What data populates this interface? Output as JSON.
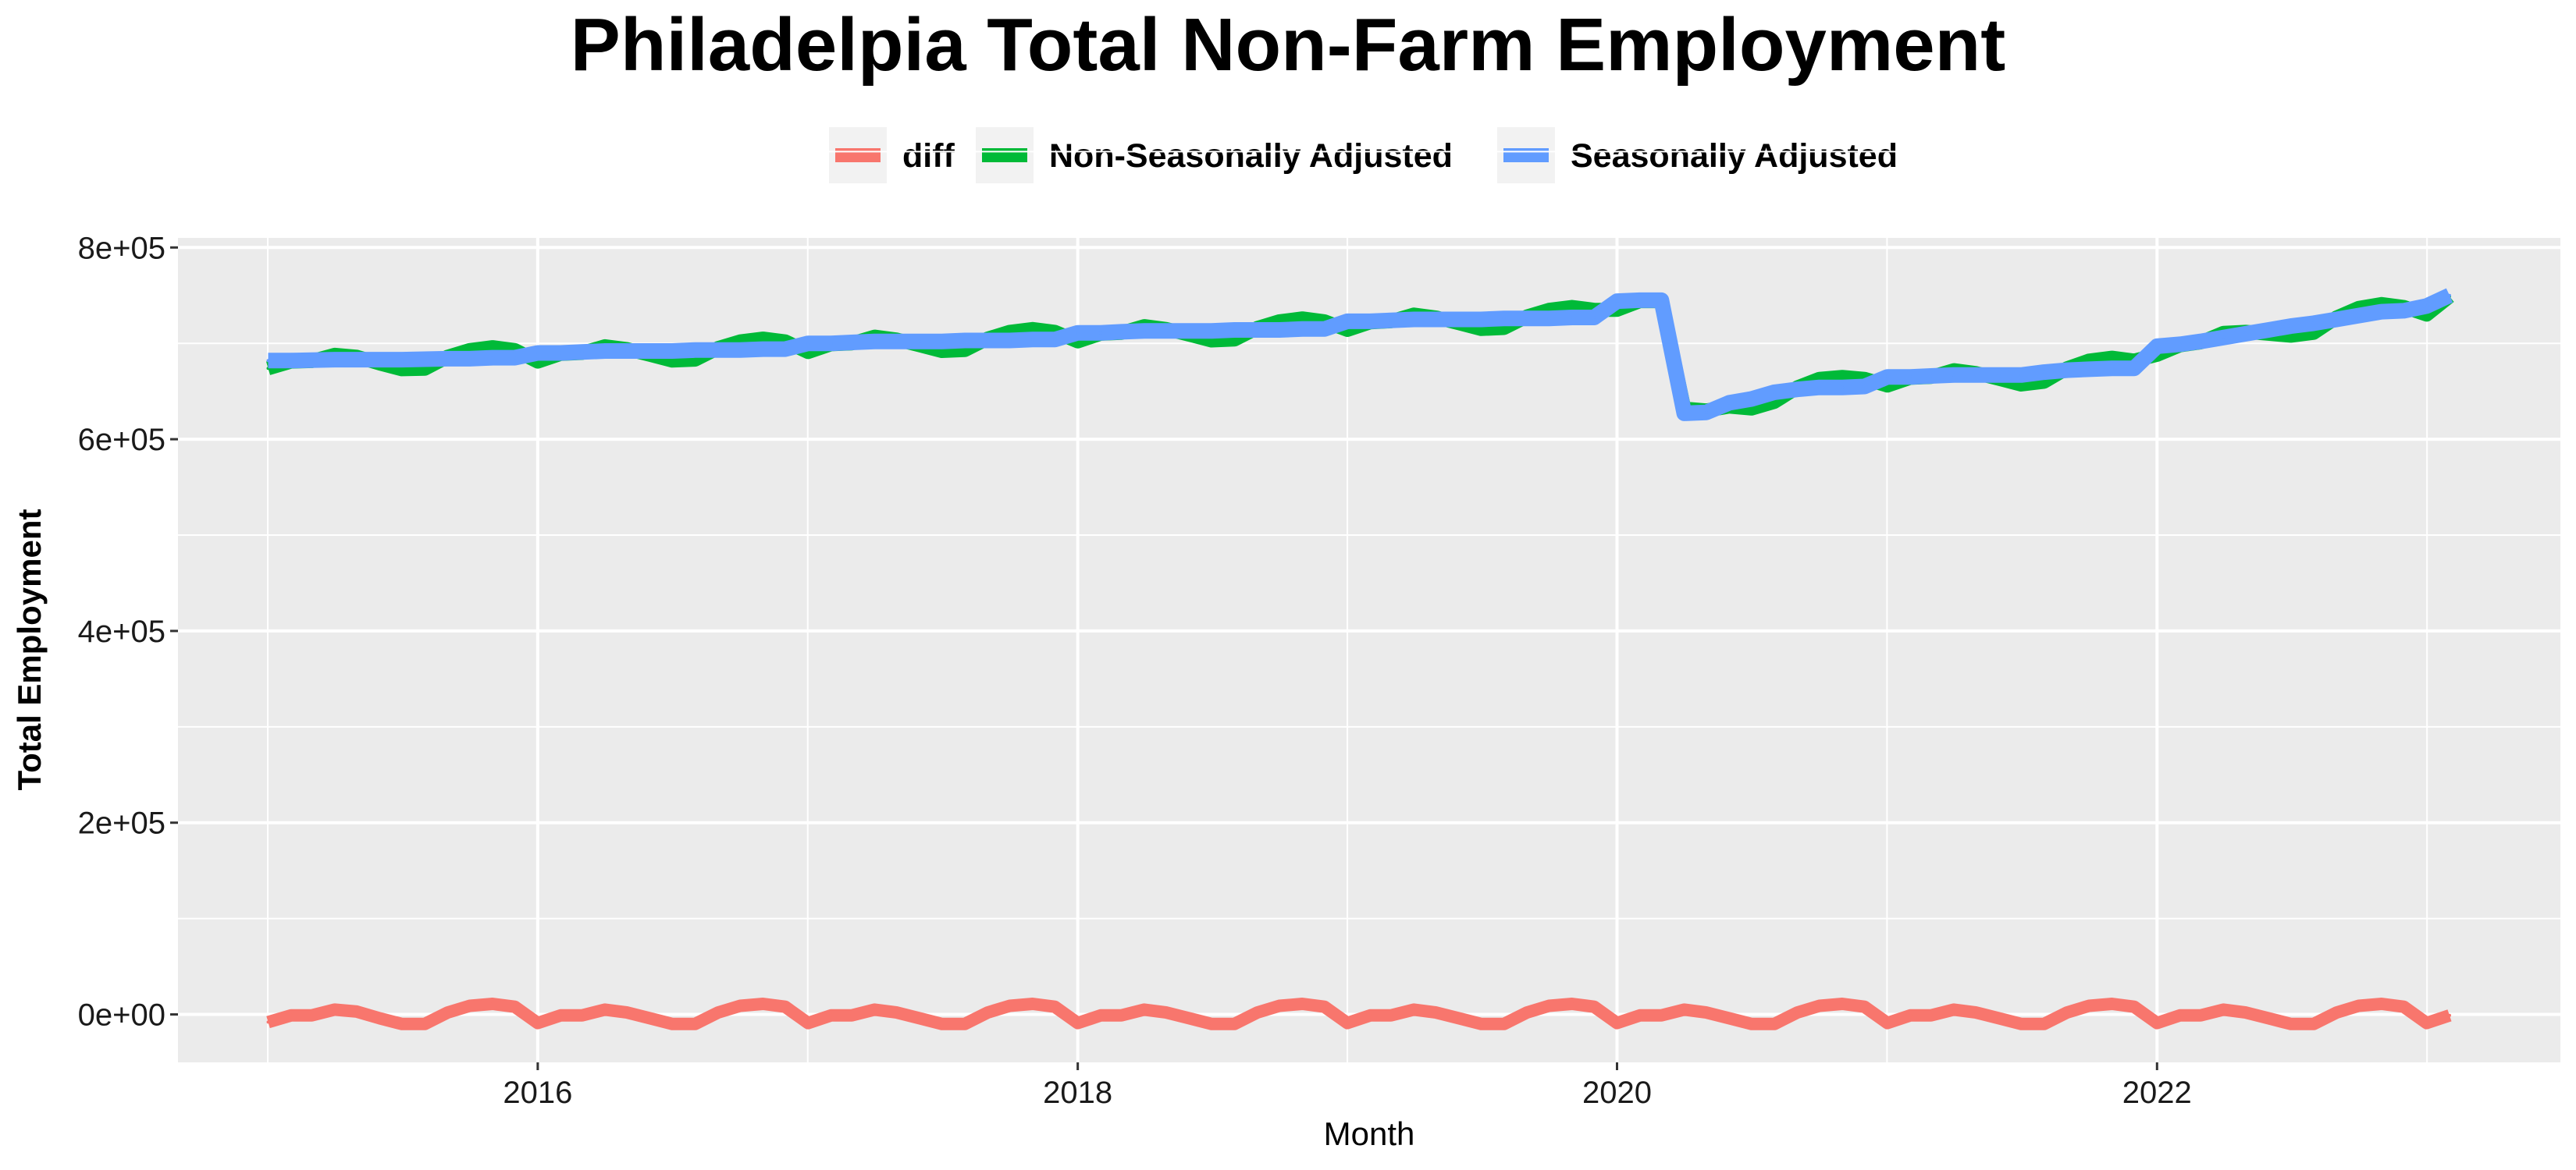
{
  "chart_data": {
    "type": "line",
    "title": "Philadelpia Total Non-Farm Employment",
    "xlabel": "Month",
    "ylabel": "Total Employment",
    "xlim": [
      "2014-09-01",
      "2023-07-01"
    ],
    "ylim": [
      -50000,
      810000
    ],
    "y_ticks": [
      0,
      200000,
      400000,
      600000,
      800000
    ],
    "y_tick_labels": [
      "0e+00",
      "2e+05",
      "4e+05",
      "6e+05",
      "8e+05"
    ],
    "x_ticks": [
      "2016-01-01",
      "2018-01-01",
      "2020-01-01",
      "2022-01-01"
    ],
    "x_tick_labels": [
      "2016",
      "2018",
      "2020",
      "2022"
    ],
    "grid": true,
    "legend_position": "top",
    "series": [
      {
        "name": "diff",
        "color": "#F8766D",
        "x": [
          "2015-01",
          "2015-02",
          "2015-03",
          "2015-04",
          "2015-05",
          "2015-06",
          "2015-07",
          "2015-08",
          "2015-09",
          "2015-10",
          "2015-11",
          "2015-12",
          "2016-01",
          "2016-02",
          "2016-03",
          "2016-04",
          "2016-05",
          "2016-06",
          "2016-07",
          "2016-08",
          "2016-09",
          "2016-10",
          "2016-11",
          "2016-12",
          "2017-01",
          "2017-02",
          "2017-03",
          "2017-04",
          "2017-05",
          "2017-06",
          "2017-07",
          "2017-08",
          "2017-09",
          "2017-10",
          "2017-11",
          "2017-12",
          "2018-01",
          "2018-02",
          "2018-03",
          "2018-04",
          "2018-05",
          "2018-06",
          "2018-07",
          "2018-08",
          "2018-09",
          "2018-10",
          "2018-11",
          "2018-12",
          "2019-01",
          "2019-02",
          "2019-03",
          "2019-04",
          "2019-05",
          "2019-06",
          "2019-07",
          "2019-08",
          "2019-09",
          "2019-10",
          "2019-11",
          "2019-12",
          "2020-01",
          "2020-02",
          "2020-03",
          "2020-04",
          "2020-05",
          "2020-06",
          "2020-07",
          "2020-08",
          "2020-09",
          "2020-10",
          "2020-11",
          "2020-12",
          "2021-01",
          "2021-02",
          "2021-03",
          "2021-04",
          "2021-05",
          "2021-06",
          "2021-07",
          "2021-08",
          "2021-09",
          "2021-10",
          "2021-11",
          "2021-12",
          "2022-01",
          "2022-02",
          "2022-03",
          "2022-04",
          "2022-05",
          "2022-06",
          "2022-07",
          "2022-08",
          "2022-09",
          "2022-10",
          "2022-11",
          "2022-12",
          "2023-01",
          "2023-02"
        ],
        "values": [
          -8000,
          -1000,
          -1000,
          5000,
          3000,
          -4000,
          -10000,
          -10000,
          2000,
          9000,
          11000,
          8000,
          -9000,
          -1000,
          -1000,
          5000,
          2000,
          -4000,
          -10000,
          -10000,
          2000,
          9000,
          11000,
          8000,
          -9000,
          -1000,
          -1000,
          5000,
          2000,
          -4000,
          -10000,
          -10000,
          2000,
          9000,
          11000,
          8000,
          -9000,
          -1000,
          -1000,
          5000,
          2000,
          -4000,
          -10000,
          -10000,
          2000,
          9000,
          11000,
          8000,
          -9000,
          -1000,
          -1000,
          5000,
          2000,
          -4000,
          -10000,
          -10000,
          2000,
          9000,
          11000,
          8000,
          -9000,
          -1000,
          -1000,
          5000,
          2000,
          -4000,
          -10000,
          -10000,
          2000,
          9000,
          11000,
          8000,
          -9000,
          -1000,
          -1000,
          5000,
          2000,
          -4000,
          -10000,
          -10000,
          2000,
          9000,
          11000,
          8000,
          -9000,
          -1000,
          -1000,
          5000,
          2000,
          -4000,
          -10000,
          -10000,
          2000,
          9000,
          11000,
          8000,
          -9000,
          -1000
        ]
      },
      {
        "name": "Non-Seasonally Adjusted",
        "color": "#00BA38",
        "x": [
          "2015-01",
          "2015-02",
          "2015-03",
          "2015-04",
          "2015-05",
          "2015-06",
          "2015-07",
          "2015-08",
          "2015-09",
          "2015-10",
          "2015-11",
          "2015-12",
          "2016-01",
          "2016-02",
          "2016-03",
          "2016-04",
          "2016-05",
          "2016-06",
          "2016-07",
          "2016-08",
          "2016-09",
          "2016-10",
          "2016-11",
          "2016-12",
          "2017-01",
          "2017-02",
          "2017-03",
          "2017-04",
          "2017-05",
          "2017-06",
          "2017-07",
          "2017-08",
          "2017-09",
          "2017-10",
          "2017-11",
          "2017-12",
          "2018-01",
          "2018-02",
          "2018-03",
          "2018-04",
          "2018-05",
          "2018-06",
          "2018-07",
          "2018-08",
          "2018-09",
          "2018-10",
          "2018-11",
          "2018-12",
          "2019-01",
          "2019-02",
          "2019-03",
          "2019-04",
          "2019-05",
          "2019-06",
          "2019-07",
          "2019-08",
          "2019-09",
          "2019-10",
          "2019-11",
          "2019-12",
          "2020-01",
          "2020-02",
          "2020-03",
          "2020-04",
          "2020-05",
          "2020-06",
          "2020-07",
          "2020-08",
          "2020-09",
          "2020-10",
          "2020-11",
          "2020-12",
          "2021-01",
          "2021-02",
          "2021-03",
          "2021-04",
          "2021-05",
          "2021-06",
          "2021-07",
          "2021-08",
          "2021-09",
          "2021-10",
          "2021-11",
          "2021-12",
          "2022-01",
          "2022-02",
          "2022-03",
          "2022-04",
          "2022-05",
          "2022-06",
          "2022-07",
          "2022-08",
          "2022-09",
          "2022-10",
          "2022-11",
          "2022-12",
          "2023-01",
          "2023-02"
        ],
        "values": [
          674000,
          681000,
          681500,
          688000,
          686000,
          679000,
          673000,
          673500,
          686000,
          693000,
          696000,
          693000,
          681000,
          689000,
          690000,
          697000,
          694000,
          688000,
          682000,
          683000,
          695000,
          702000,
          705000,
          702000,
          691000,
          699000,
          700000,
          707000,
          704000,
          698000,
          692000,
          693000,
          705000,
          712000,
          715000,
          712000,
          702000,
          710000,
          711000,
          718000,
          715000,
          709000,
          703000,
          704000,
          716000,
          723000,
          726000,
          723000,
          714000,
          722000,
          723000,
          730000,
          727000,
          721000,
          715000,
          716000,
          728000,
          735000,
          738000,
          735000,
          735000,
          744000,
          744000,
          632000,
          630000,
          634000,
          632000,
          639000,
          654000,
          663000,
          665000,
          663000,
          656000,
          664000,
          665000,
          672000,
          669000,
          663000,
          657000,
          660000,
          674000,
          682000,
          685000,
          682000,
          688000,
          698000,
          701000,
          711000,
          712000,
          710000,
          708000,
          711000,
          727000,
          737000,
          741000,
          738000,
          730000,
          749000
        ]
      },
      {
        "name": "Seasonally Adjusted",
        "color": "#619CFF",
        "x": [
          "2015-01",
          "2015-02",
          "2015-03",
          "2015-04",
          "2015-05",
          "2015-06",
          "2015-07",
          "2015-08",
          "2015-09",
          "2015-10",
          "2015-11",
          "2015-12",
          "2016-01",
          "2016-02",
          "2016-03",
          "2016-04",
          "2016-05",
          "2016-06",
          "2016-07",
          "2016-08",
          "2016-09",
          "2016-10",
          "2016-11",
          "2016-12",
          "2017-01",
          "2017-02",
          "2017-03",
          "2017-04",
          "2017-05",
          "2017-06",
          "2017-07",
          "2017-08",
          "2017-09",
          "2017-10",
          "2017-11",
          "2017-12",
          "2018-01",
          "2018-02",
          "2018-03",
          "2018-04",
          "2018-05",
          "2018-06",
          "2018-07",
          "2018-08",
          "2018-09",
          "2018-10",
          "2018-11",
          "2018-12",
          "2019-01",
          "2019-02",
          "2019-03",
          "2019-04",
          "2019-05",
          "2019-06",
          "2019-07",
          "2019-08",
          "2019-09",
          "2019-10",
          "2019-11",
          "2019-12",
          "2020-01",
          "2020-02",
          "2020-03",
          "2020-04",
          "2020-05",
          "2020-06",
          "2020-07",
          "2020-08",
          "2020-09",
          "2020-10",
          "2020-11",
          "2020-12",
          "2021-01",
          "2021-02",
          "2021-03",
          "2021-04",
          "2021-05",
          "2021-06",
          "2021-07",
          "2021-08",
          "2021-09",
          "2021-10",
          "2021-11",
          "2021-12",
          "2022-01",
          "2022-02",
          "2022-03",
          "2022-04",
          "2022-05",
          "2022-06",
          "2022-07",
          "2022-08",
          "2022-09",
          "2022-10",
          "2022-11",
          "2022-12",
          "2023-01",
          "2023-02"
        ],
        "values": [
          682000,
          682000,
          682500,
          683000,
          683000,
          683000,
          683000,
          683500,
          684000,
          684000,
          685000,
          685000,
          690000,
          690000,
          691000,
          692000,
          692000,
          692000,
          692000,
          693000,
          693000,
          693000,
          694000,
          694000,
          700000,
          700000,
          701000,
          702000,
          702000,
          702000,
          702000,
          703000,
          703000,
          703000,
          704000,
          704000,
          711000,
          711000,
          712000,
          713000,
          713000,
          713000,
          713000,
          714000,
          714000,
          714000,
          715000,
          715000,
          723000,
          723000,
          724000,
          725000,
          725000,
          725000,
          725000,
          726000,
          726000,
          726000,
          727000,
          727000,
          744000,
          745000,
          745000,
          627000,
          628000,
          638000,
          642000,
          649000,
          652000,
          654000,
          654000,
          655000,
          665000,
          665000,
          666000,
          667000,
          667000,
          667000,
          667000,
          670000,
          672000,
          673000,
          674000,
          674000,
          697000,
          699000,
          702000,
          706000,
          710000,
          714000,
          718000,
          721000,
          725000,
          729000,
          733000,
          734000,
          739000,
          750000
        ]
      }
    ]
  }
}
